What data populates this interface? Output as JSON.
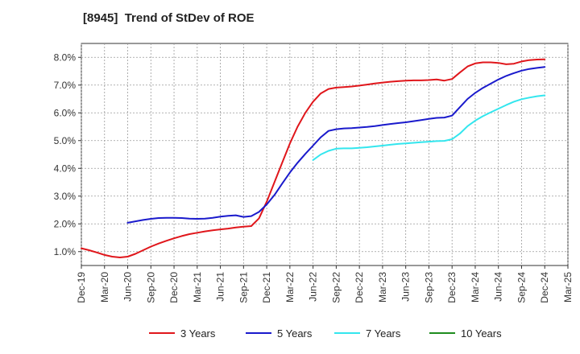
{
  "chart_data": {
    "type": "line",
    "title": "[8945]  Trend of StDev of ROE",
    "x_tick_labels": [
      "Dec-19",
      "Mar-20",
      "Jun-20",
      "Sep-20",
      "Dec-20",
      "Mar-21",
      "Jun-21",
      "Sep-21",
      "Dec-21",
      "Mar-22",
      "Jun-22",
      "Sep-22",
      "Dec-22",
      "Mar-23",
      "Jun-23",
      "Sep-23",
      "Dec-23",
      "Mar-24",
      "Jun-24",
      "Sep-24",
      "Dec-24",
      "Mar-25"
    ],
    "y_tick_labels": [
      "1.0%",
      "2.0%",
      "3.0%",
      "4.0%",
      "5.0%",
      "6.0%",
      "7.0%",
      "8.0%"
    ],
    "ylim": [
      0.5,
      8.5
    ],
    "x_unit": "months since Dec-19",
    "xlim": [
      0,
      63
    ],
    "grid": true,
    "legend_position": "bottom",
    "series": [
      {
        "name": "3 Years",
        "color": "#e0161b",
        "x": [
          0,
          1,
          2,
          3,
          4,
          5,
          6,
          7,
          8,
          9,
          10,
          11,
          12,
          13,
          14,
          15,
          16,
          17,
          18,
          19,
          20,
          21,
          22,
          23,
          24,
          25,
          26,
          27,
          28,
          29,
          30,
          31,
          32,
          33,
          34,
          35,
          36,
          37,
          38,
          39,
          40,
          41,
          42,
          43,
          44,
          45,
          46,
          47,
          48,
          49,
          50,
          51,
          52,
          53,
          54,
          55,
          56,
          57,
          58,
          59,
          60
        ],
        "y": [
          1.12,
          1.05,
          0.97,
          0.88,
          0.82,
          0.79,
          0.82,
          0.92,
          1.05,
          1.18,
          1.29,
          1.39,
          1.48,
          1.56,
          1.63,
          1.68,
          1.73,
          1.77,
          1.8,
          1.83,
          1.87,
          1.9,
          1.92,
          2.2,
          2.8,
          3.5,
          4.2,
          4.9,
          5.5,
          6.0,
          6.4,
          6.7,
          6.86,
          6.91,
          6.93,
          6.95,
          6.98,
          7.02,
          7.06,
          7.09,
          7.12,
          7.14,
          7.16,
          7.17,
          7.17,
          7.18,
          7.2,
          7.16,
          7.22,
          7.45,
          7.67,
          7.78,
          7.82,
          7.82,
          7.8,
          7.75,
          7.77,
          7.85,
          7.9,
          7.92,
          7.93
        ]
      },
      {
        "name": "5 Years",
        "color": "#1a1acc",
        "x": [
          6,
          7,
          8,
          9,
          10,
          11,
          12,
          13,
          14,
          15,
          16,
          17,
          18,
          19,
          20,
          21,
          22,
          23,
          24,
          25,
          26,
          27,
          28,
          29,
          30,
          31,
          32,
          33,
          34,
          35,
          36,
          37,
          38,
          39,
          40,
          41,
          42,
          43,
          44,
          45,
          46,
          47,
          48,
          49,
          50,
          51,
          52,
          53,
          54,
          55,
          56,
          57,
          58,
          59,
          60
        ],
        "y": [
          2.04,
          2.09,
          2.14,
          2.18,
          2.21,
          2.22,
          2.22,
          2.21,
          2.19,
          2.18,
          2.19,
          2.22,
          2.26,
          2.29,
          2.31,
          2.25,
          2.28,
          2.43,
          2.7,
          3.04,
          3.45,
          3.85,
          4.2,
          4.52,
          4.82,
          5.12,
          5.35,
          5.41,
          5.44,
          5.45,
          5.47,
          5.49,
          5.52,
          5.56,
          5.6,
          5.63,
          5.66,
          5.7,
          5.74,
          5.78,
          5.82,
          5.83,
          5.9,
          6.2,
          6.5,
          6.72,
          6.9,
          7.05,
          7.2,
          7.33,
          7.43,
          7.52,
          7.58,
          7.62,
          7.65
        ]
      },
      {
        "name": "7 Years",
        "color": "#33e6ee",
        "x": [
          30,
          31,
          32,
          33,
          34,
          35,
          36,
          37,
          38,
          39,
          40,
          41,
          42,
          43,
          44,
          45,
          46,
          47,
          48,
          49,
          50,
          51,
          52,
          53,
          54,
          55,
          56,
          57,
          58,
          59,
          60
        ],
        "y": [
          4.3,
          4.5,
          4.63,
          4.71,
          4.72,
          4.72,
          4.74,
          4.76,
          4.79,
          4.82,
          4.85,
          4.88,
          4.9,
          4.92,
          4.94,
          4.96,
          4.98,
          4.99,
          5.05,
          5.25,
          5.52,
          5.72,
          5.88,
          6.02,
          6.15,
          6.28,
          6.4,
          6.49,
          6.55,
          6.6,
          6.63
        ]
      },
      {
        "name": "10 Years",
        "color": "#1e8c1e",
        "x": [],
        "y": []
      }
    ]
  }
}
